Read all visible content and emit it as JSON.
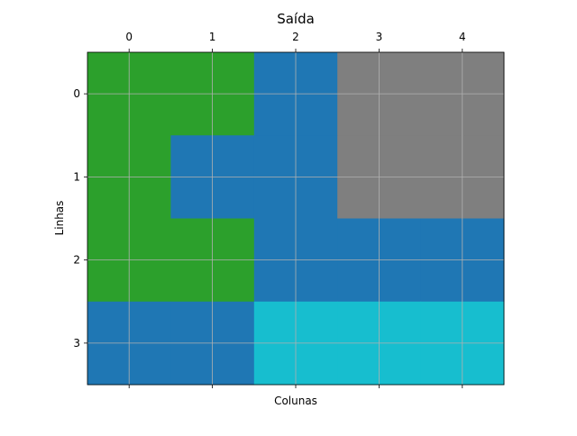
{
  "chart_data": {
    "type": "heatmap",
    "title": "Saída",
    "xlabel": "Colunas",
    "ylabel": "Linhas",
    "x_ticks": [
      0,
      1,
      2,
      3,
      4
    ],
    "y_ticks": [
      0,
      1,
      2,
      3
    ],
    "x_tick_position": "top",
    "grid": true,
    "grid_color": "#b0b0b0",
    "palette": {
      "1": "#1f77b4",
      "2": "#2ca02c",
      "7": "#7f7f7f",
      "9": "#17becf"
    },
    "values": [
      [
        2,
        2,
        1,
        7,
        7
      ],
      [
        2,
        1,
        1,
        7,
        7
      ],
      [
        2,
        2,
        1,
        1,
        1
      ],
      [
        1,
        1,
        9,
        9,
        9
      ]
    ]
  }
}
